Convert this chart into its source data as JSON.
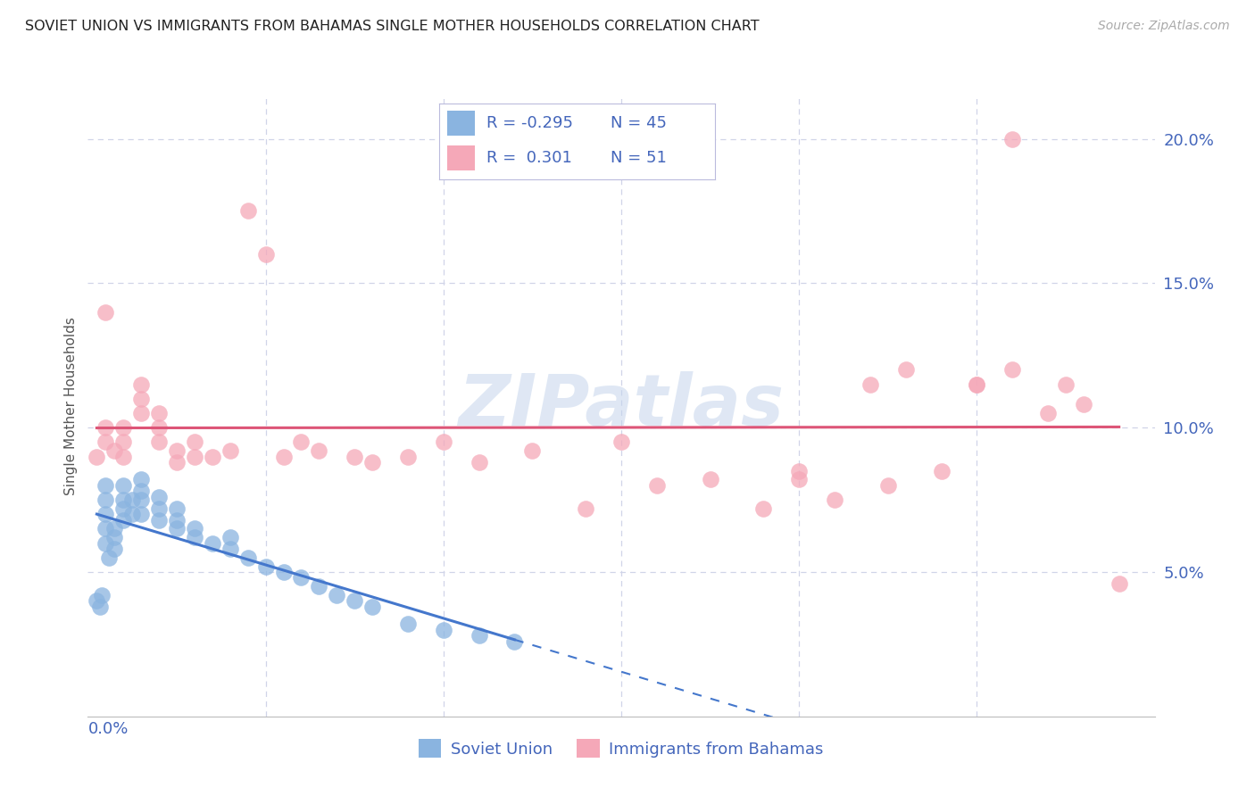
{
  "title": "SOVIET UNION VS IMMIGRANTS FROM BAHAMAS SINGLE MOTHER HOUSEHOLDS CORRELATION CHART",
  "source": "Source: ZipAtlas.com",
  "ylabel": "Single Mother Households",
  "yticks": [
    "5.0%",
    "10.0%",
    "15.0%",
    "20.0%"
  ],
  "ytick_vals": [
    0.05,
    0.1,
    0.15,
    0.2
  ],
  "xlim": [
    0.0,
    0.06
  ],
  "ylim": [
    0.0,
    0.215
  ],
  "legend_blue_r": "-0.295",
  "legend_blue_n": "45",
  "legend_pink_r": "0.301",
  "legend_pink_n": "51",
  "watermark": "ZIPatlas",
  "blue_color": "#8ab4e0",
  "pink_color": "#f5a8b8",
  "trendline_blue_color": "#4477cc",
  "trendline_pink_color": "#dd5577",
  "axis_color": "#4466bb",
  "grid_color": "#d0d4e8",
  "soviet_x": [
    0.0005,
    0.0007,
    0.0008,
    0.001,
    0.001,
    0.001,
    0.001,
    0.001,
    0.0012,
    0.0015,
    0.0015,
    0.0015,
    0.002,
    0.002,
    0.002,
    0.002,
    0.0025,
    0.0025,
    0.003,
    0.003,
    0.003,
    0.003,
    0.004,
    0.004,
    0.004,
    0.005,
    0.005,
    0.005,
    0.006,
    0.006,
    0.007,
    0.008,
    0.008,
    0.009,
    0.01,
    0.011,
    0.012,
    0.013,
    0.014,
    0.015,
    0.016,
    0.018,
    0.02,
    0.022,
    0.024
  ],
  "soviet_y": [
    0.04,
    0.038,
    0.042,
    0.06,
    0.065,
    0.07,
    0.075,
    0.08,
    0.055,
    0.058,
    0.062,
    0.065,
    0.068,
    0.072,
    0.075,
    0.08,
    0.07,
    0.075,
    0.07,
    0.075,
    0.078,
    0.082,
    0.068,
    0.072,
    0.076,
    0.065,
    0.068,
    0.072,
    0.062,
    0.065,
    0.06,
    0.058,
    0.062,
    0.055,
    0.052,
    0.05,
    0.048,
    0.045,
    0.042,
    0.04,
    0.038,
    0.032,
    0.03,
    0.028,
    0.026
  ],
  "bahamas_x": [
    0.0005,
    0.001,
    0.001,
    0.001,
    0.0015,
    0.002,
    0.002,
    0.002,
    0.003,
    0.003,
    0.003,
    0.004,
    0.004,
    0.004,
    0.005,
    0.005,
    0.006,
    0.006,
    0.007,
    0.008,
    0.009,
    0.01,
    0.011,
    0.012,
    0.013,
    0.015,
    0.016,
    0.018,
    0.02,
    0.022,
    0.025,
    0.028,
    0.03,
    0.032,
    0.035,
    0.038,
    0.04,
    0.042,
    0.044,
    0.046,
    0.048,
    0.05,
    0.052,
    0.054,
    0.056,
    0.04,
    0.045,
    0.05,
    0.052,
    0.055,
    0.058
  ],
  "bahamas_y": [
    0.09,
    0.095,
    0.1,
    0.14,
    0.092,
    0.09,
    0.095,
    0.1,
    0.105,
    0.11,
    0.115,
    0.095,
    0.1,
    0.105,
    0.088,
    0.092,
    0.09,
    0.095,
    0.09,
    0.092,
    0.175,
    0.16,
    0.09,
    0.095,
    0.092,
    0.09,
    0.088,
    0.09,
    0.095,
    0.088,
    0.092,
    0.072,
    0.095,
    0.08,
    0.082,
    0.072,
    0.085,
    0.075,
    0.115,
    0.12,
    0.085,
    0.115,
    0.2,
    0.105,
    0.108,
    0.082,
    0.08,
    0.115,
    0.12,
    0.115,
    0.046
  ]
}
